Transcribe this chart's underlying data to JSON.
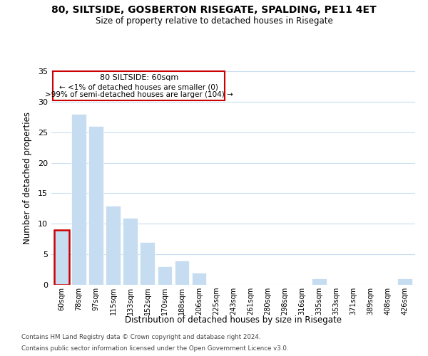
{
  "title": "80, SILTSIDE, GOSBERTON RISEGATE, SPALDING, PE11 4ET",
  "subtitle": "Size of property relative to detached houses in Risegate",
  "xlabel": "Distribution of detached houses by size in Risegate",
  "ylabel": "Number of detached properties",
  "bar_labels": [
    "60sqm",
    "78sqm",
    "97sqm",
    "115sqm",
    "133sqm",
    "152sqm",
    "170sqm",
    "188sqm",
    "206sqm",
    "225sqm",
    "243sqm",
    "261sqm",
    "280sqm",
    "298sqm",
    "316sqm",
    "335sqm",
    "353sqm",
    "371sqm",
    "389sqm",
    "408sqm",
    "426sqm"
  ],
  "bar_values": [
    9,
    28,
    26,
    13,
    11,
    7,
    3,
    4,
    2,
    0,
    0,
    0,
    0,
    0,
    0,
    1,
    0,
    0,
    0,
    0,
    1
  ],
  "bar_color": "#c6dcf0",
  "highlight_bar_index": 0,
  "highlight_border_color": "#cc0000",
  "ylim": [
    0,
    35
  ],
  "yticks": [
    0,
    5,
    10,
    15,
    20,
    25,
    30,
    35
  ],
  "footer_line1": "Contains HM Land Registry data © Crown copyright and database right 2024.",
  "footer_line2": "Contains public sector information licensed under the Open Government Licence v3.0.",
  "background_color": "#ffffff",
  "grid_color": "#c8ddf0"
}
